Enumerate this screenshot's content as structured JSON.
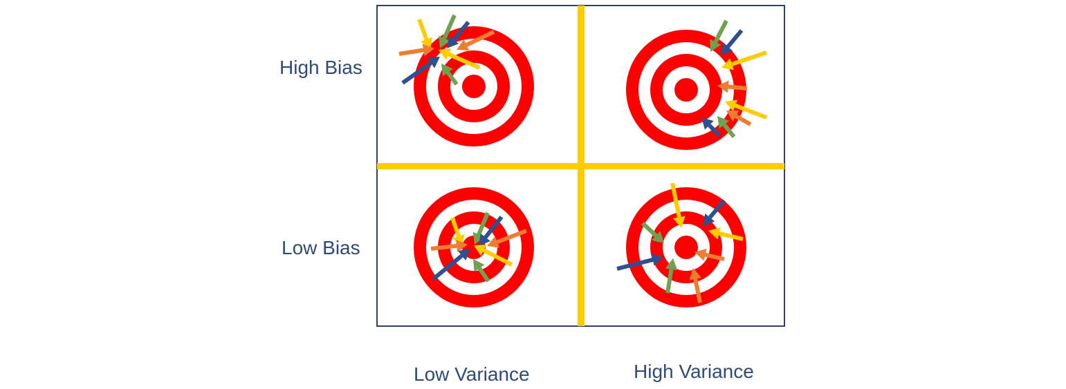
{
  "labels": {
    "rows": [
      "High Bias",
      "Low Bias"
    ],
    "columns": [
      "Low Variance",
      "High Variance"
    ]
  },
  "colors": {
    "target_red": "#ff0000",
    "target_white": "#ffffff",
    "frame_border": "#2f3f6f",
    "divider": "#ffcc00",
    "label_text": "#2e4a78",
    "arrow_yellow": "#ffcc00",
    "arrow_green": "#70a050",
    "arrow_navy": "#2f4f8f",
    "arrow_orange": "#ed7d31"
  },
  "quadrants": [
    {
      "bias": "High Bias",
      "variance": "Low Variance",
      "arrows": [
        {
          "color": "arrow_yellow"
        },
        {
          "color": "arrow_green"
        },
        {
          "color": "arrow_navy"
        },
        {
          "color": "arrow_orange"
        },
        {
          "color": "arrow_orange"
        },
        {
          "color": "arrow_yellow"
        },
        {
          "color": "arrow_navy"
        },
        {
          "color": "arrow_green"
        }
      ]
    },
    {
      "bias": "High Bias",
      "variance": "High Variance",
      "arrows": [
        {
          "color": "arrow_green"
        },
        {
          "color": "arrow_navy"
        },
        {
          "color": "arrow_yellow"
        },
        {
          "color": "arrow_orange"
        },
        {
          "color": "arrow_yellow"
        },
        {
          "color": "arrow_orange"
        },
        {
          "color": "arrow_green"
        },
        {
          "color": "arrow_navy"
        }
      ]
    },
    {
      "bias": "Low Bias",
      "variance": "Low Variance",
      "arrows": [
        {
          "color": "arrow_yellow"
        },
        {
          "color": "arrow_green"
        },
        {
          "color": "arrow_navy"
        },
        {
          "color": "arrow_orange"
        },
        {
          "color": "arrow_orange"
        },
        {
          "color": "arrow_yellow"
        },
        {
          "color": "arrow_green"
        },
        {
          "color": "arrow_navy"
        }
      ]
    },
    {
      "bias": "Low Bias",
      "variance": "High Variance",
      "arrows": [
        {
          "color": "arrow_yellow"
        },
        {
          "color": "arrow_navy"
        },
        {
          "color": "arrow_green"
        },
        {
          "color": "arrow_yellow"
        },
        {
          "color": "arrow_navy"
        },
        {
          "color": "arrow_green"
        },
        {
          "color": "arrow_orange"
        },
        {
          "color": "arrow_orange"
        }
      ]
    }
  ]
}
